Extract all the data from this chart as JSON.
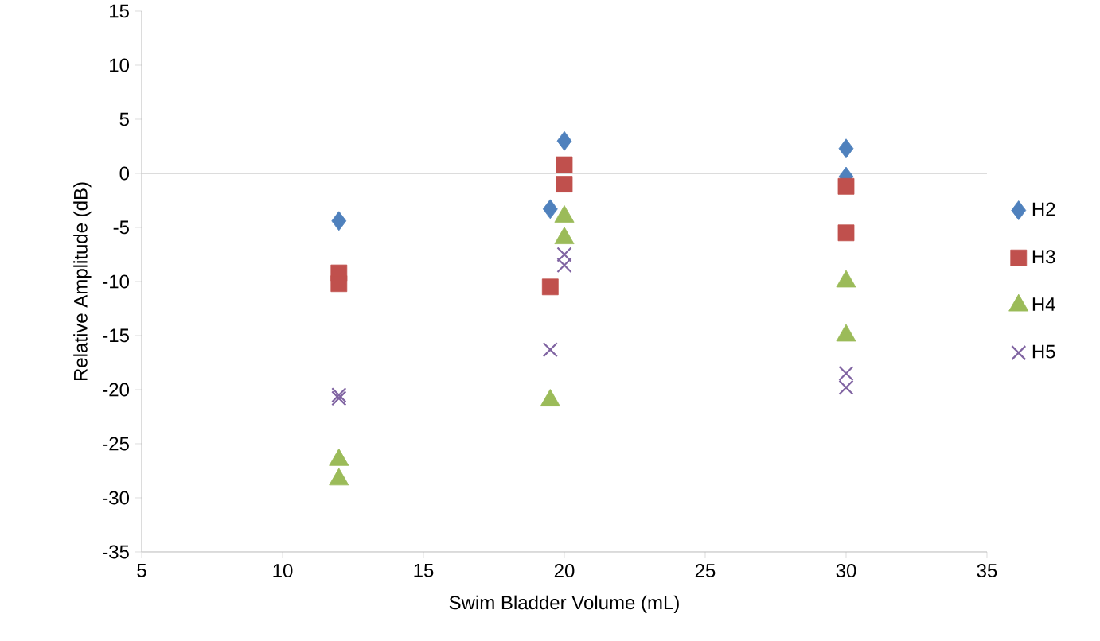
{
  "chart_data": {
    "type": "scatter",
    "xlabel": "Swim Bladder Volume (mL)",
    "ylabel": "Relative Amplitude (dB)",
    "xlim": [
      5,
      35
    ],
    "xticks": [
      5,
      10,
      15,
      20,
      25,
      30,
      35
    ],
    "ylim": [
      -35,
      15
    ],
    "yticks": [
      -35,
      -30,
      -25,
      -20,
      -15,
      -10,
      -5,
      0,
      5,
      10,
      15
    ],
    "grid": false,
    "legend": "right",
    "ref_lines": [
      {
        "axis": "y",
        "value": 0,
        "color": "#a6a6a6"
      }
    ],
    "series": [
      {
        "name": "H2",
        "color": "#4f81bd",
        "marker": "diamond",
        "x": [
          12,
          19.5,
          20,
          30,
          30
        ],
        "values": [
          -4.4,
          -3.3,
          3.0,
          2.3,
          -0.3
        ]
      },
      {
        "name": "H3",
        "color": "#c0504d",
        "marker": "square",
        "x": [
          12,
          12,
          19.5,
          20,
          20,
          30,
          30
        ],
        "values": [
          -9.2,
          -10.2,
          -10.5,
          0.8,
          -1.0,
          -1.2,
          -5.5
        ]
      },
      {
        "name": "H4",
        "color": "#9bbb59",
        "marker": "triangle",
        "x": [
          12,
          12,
          19.5,
          20,
          20,
          30,
          30
        ],
        "values": [
          -26.5,
          -28.3,
          -21,
          -4,
          -6,
          -10,
          -15
        ]
      },
      {
        "name": "H5",
        "color": "#8064a2",
        "marker": "cross",
        "x": [
          12,
          12,
          19.5,
          20,
          20,
          30,
          30
        ],
        "values": [
          -20.5,
          -20.8,
          -16.3,
          -7.5,
          -8.5,
          -18.5,
          -19.8
        ]
      }
    ]
  }
}
